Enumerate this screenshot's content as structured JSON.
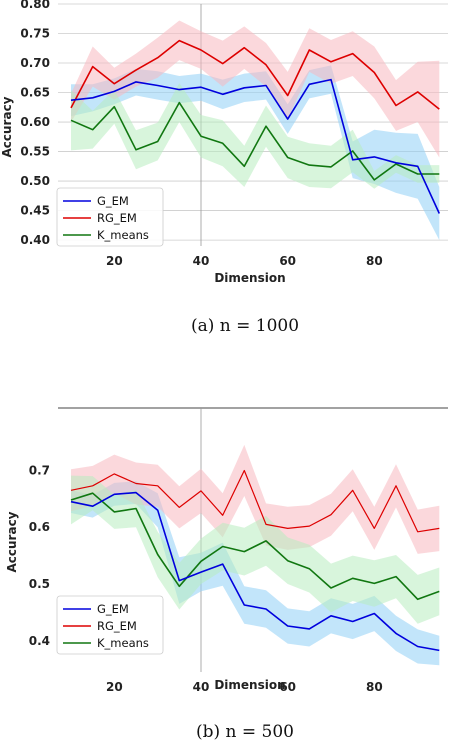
{
  "chart_data": [
    {
      "type": "line",
      "caption": "(a) n = 1000",
      "xlabel": "Dimension",
      "ylabel": "Accuracy",
      "xlim": [
        7,
        97
      ],
      "ylim": [
        0.39,
        0.8
      ],
      "xticks": [
        20,
        40,
        60,
        80
      ],
      "yticks": [
        0.4,
        0.45,
        0.5,
        0.55,
        0.6,
        0.65,
        0.7,
        0.75,
        0.8
      ],
      "grid": "y-lines plus vertical line at x=40",
      "legend_position": "lower-left",
      "x": [
        10,
        15,
        20,
        25,
        30,
        35,
        40,
        45,
        50,
        55,
        60,
        65,
        70,
        75,
        80,
        85,
        90,
        95
      ],
      "series": [
        {
          "name": "G_EM",
          "color": "#0000dd",
          "band_color": "#8fd0f5",
          "values": [
            0.637,
            0.641,
            0.652,
            0.668,
            0.662,
            0.655,
            0.659,
            0.647,
            0.658,
            0.662,
            0.605,
            0.664,
            0.672,
            0.536,
            0.541,
            0.531,
            0.525,
            0.445
          ],
          "lower": [
            0.61,
            0.618,
            0.63,
            0.645,
            0.638,
            0.632,
            0.636,
            0.622,
            0.634,
            0.638,
            0.58,
            0.64,
            0.648,
            0.505,
            0.495,
            0.48,
            0.47,
            0.4
          ],
          "upper": [
            0.664,
            0.664,
            0.674,
            0.69,
            0.686,
            0.678,
            0.682,
            0.672,
            0.682,
            0.686,
            0.63,
            0.688,
            0.696,
            0.567,
            0.587,
            0.582,
            0.58,
            0.49
          ]
        },
        {
          "name": "RG_EM",
          "color": "#dd0000",
          "band_color": "#f7b8c0",
          "values": [
            0.624,
            0.694,
            0.665,
            0.688,
            0.709,
            0.738,
            0.722,
            0.699,
            0.726,
            0.697,
            0.645,
            0.722,
            0.702,
            0.716,
            0.684,
            0.628,
            0.651,
            0.622
          ],
          "lower": [
            0.6,
            0.66,
            0.638,
            0.66,
            0.675,
            0.705,
            0.69,
            0.66,
            0.69,
            0.66,
            0.605,
            0.685,
            0.665,
            0.678,
            0.64,
            0.585,
            0.6,
            0.54
          ],
          "upper": [
            0.648,
            0.728,
            0.692,
            0.716,
            0.743,
            0.772,
            0.754,
            0.738,
            0.762,
            0.734,
            0.685,
            0.759,
            0.739,
            0.754,
            0.728,
            0.671,
            0.702,
            0.704
          ]
        },
        {
          "name": "K_means",
          "color": "#117711",
          "band_color": "#b8ecc0",
          "values": [
            0.603,
            0.587,
            0.626,
            0.553,
            0.567,
            0.633,
            0.576,
            0.564,
            0.525,
            0.593,
            0.54,
            0.527,
            0.524,
            0.551,
            0.502,
            0.529,
            0.512,
            0.512
          ],
          "lower": [
            0.552,
            0.555,
            0.597,
            0.52,
            0.535,
            0.6,
            0.54,
            0.525,
            0.49,
            0.558,
            0.505,
            0.49,
            0.488,
            0.515,
            0.487,
            0.514,
            0.497,
            0.497
          ],
          "upper": [
            0.654,
            0.619,
            0.655,
            0.586,
            0.599,
            0.666,
            0.612,
            0.603,
            0.56,
            0.628,
            0.575,
            0.564,
            0.56,
            0.587,
            0.517,
            0.544,
            0.527,
            0.527
          ]
        }
      ]
    },
    {
      "type": "line",
      "caption": "(b) n = 500",
      "xlabel": "Dimension",
      "ylabel": "Accuracy",
      "xlim": [
        7,
        97
      ],
      "ylim": [
        0.345,
        0.81
      ],
      "xticks": [
        20,
        40,
        60,
        80
      ],
      "yticks": [
        0.4,
        0.5,
        0.6,
        0.7
      ],
      "grid": "vertical line at x=40",
      "legend_position": "lower-left",
      "x": [
        10,
        15,
        20,
        25,
        30,
        35,
        40,
        45,
        50,
        55,
        60,
        65,
        70,
        75,
        80,
        85,
        90,
        95
      ],
      "series": [
        {
          "name": "G_EM",
          "color": "#0000dd",
          "band_color": "#8fd0f5",
          "values": [
            0.645,
            0.637,
            0.658,
            0.661,
            0.63,
            0.506,
            0.521,
            0.535,
            0.463,
            0.456,
            0.426,
            0.421,
            0.444,
            0.434,
            0.448,
            0.413,
            0.39,
            0.383
          ],
          "lower": [
            0.625,
            0.617,
            0.638,
            0.641,
            0.6,
            0.465,
            0.487,
            0.497,
            0.43,
            0.423,
            0.395,
            0.39,
            0.413,
            0.403,
            0.417,
            0.382,
            0.36,
            0.357
          ],
          "upper": [
            0.665,
            0.657,
            0.678,
            0.681,
            0.66,
            0.547,
            0.555,
            0.573,
            0.496,
            0.489,
            0.457,
            0.452,
            0.475,
            0.465,
            0.479,
            0.444,
            0.42,
            0.409
          ]
        },
        {
          "name": "RG_EM",
          "color": "#dd0000",
          "band_color": "#f7b8c0",
          "values": [
            0.665,
            0.673,
            0.694,
            0.677,
            0.673,
            0.635,
            0.664,
            0.621,
            0.7,
            0.605,
            0.598,
            0.602,
            0.622,
            0.665,
            0.598,
            0.673,
            0.592,
            0.598
          ],
          "lower": [
            0.628,
            0.638,
            0.66,
            0.64,
            0.636,
            0.598,
            0.625,
            0.582,
            0.655,
            0.568,
            0.56,
            0.565,
            0.585,
            0.628,
            0.56,
            0.635,
            0.553,
            0.558
          ],
          "upper": [
            0.702,
            0.708,
            0.728,
            0.714,
            0.71,
            0.672,
            0.703,
            0.66,
            0.745,
            0.642,
            0.636,
            0.639,
            0.659,
            0.702,
            0.636,
            0.711,
            0.631,
            0.638
          ]
        },
        {
          "name": "K_means",
          "color": "#117711",
          "band_color": "#b8ecc0",
          "values": [
            0.648,
            0.66,
            0.627,
            0.633,
            0.552,
            0.496,
            0.54,
            0.566,
            0.557,
            0.576,
            0.541,
            0.527,
            0.493,
            0.51,
            0.501,
            0.513,
            0.473,
            0.487
          ],
          "lower": [
            0.605,
            0.63,
            0.597,
            0.6,
            0.512,
            0.455,
            0.5,
            0.524,
            0.515,
            0.532,
            0.5,
            0.485,
            0.45,
            0.47,
            0.46,
            0.475,
            0.43,
            0.445
          ],
          "upper": [
            0.691,
            0.69,
            0.657,
            0.666,
            0.592,
            0.537,
            0.58,
            0.608,
            0.599,
            0.62,
            0.582,
            0.569,
            0.536,
            0.55,
            0.542,
            0.551,
            0.516,
            0.529
          ]
        }
      ]
    }
  ]
}
